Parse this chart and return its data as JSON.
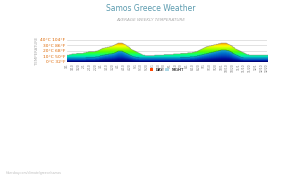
{
  "title": "Samos Greece Weather",
  "subtitle": "AVERAGE WEEKLY TEMPERATURE",
  "ylabel": "TEMPERATURE",
  "yticks_labels": [
    "0°C 32°F",
    "10°C 50°F",
    "20°C 68°F",
    "30°C 86°F",
    "40°C 104°F"
  ],
  "yticks_values": [
    0,
    10,
    20,
    30,
    40
  ],
  "ylim": [
    0,
    40
  ],
  "title_color": "#5b9baf",
  "subtitle_color": "#aaaaaa",
  "background_color": "#ffffff",
  "watermark": "hikersbay.com/climate/greece/samos",
  "legend_day_color": "#ff4500",
  "legend_night_color": "#add8e6",
  "day_colors": [
    [
      0.0,
      "#0000dd"
    ],
    [
      0.15,
      "#00aaff"
    ],
    [
      0.3,
      "#00ff88"
    ],
    [
      0.45,
      "#55ff00"
    ],
    [
      0.6,
      "#bbff00"
    ],
    [
      0.7,
      "#ffff00"
    ],
    [
      0.8,
      "#ffaa00"
    ],
    [
      0.9,
      "#ff4400"
    ],
    [
      1.0,
      "#ff0000"
    ]
  ],
  "night_colors": [
    [
      0.0,
      "#00005a"
    ],
    [
      0.25,
      "#000899"
    ],
    [
      0.5,
      "#0044bb"
    ],
    [
      0.75,
      "#0077cc"
    ],
    [
      1.0,
      "#22aacc"
    ]
  ],
  "day_temps": [
    12,
    12,
    13,
    13,
    14,
    14,
    14,
    14,
    15,
    15,
    15,
    15,
    15,
    15,
    16,
    16,
    17,
    17,
    18,
    18,
    18,
    18,
    18,
    18,
    19,
    19,
    20,
    21,
    22,
    23,
    24,
    24,
    25,
    25,
    26,
    26,
    27,
    27,
    28,
    29,
    30,
    31,
    32,
    33,
    33,
    33,
    33,
    32,
    31,
    30,
    28,
    27,
    26,
    24,
    22,
    21,
    20,
    19,
    18,
    17,
    16,
    15,
    14,
    13,
    12,
    12,
    11,
    11,
    11,
    11,
    11,
    11,
    11,
    11,
    12,
    12,
    12,
    12,
    12,
    12,
    12,
    12,
    13,
    13,
    13,
    13,
    13,
    13,
    13,
    13,
    14,
    14,
    14,
    14,
    14,
    14,
    15,
    15,
    15,
    15,
    15,
    15,
    16,
    16,
    16,
    16,
    17,
    17,
    18,
    18,
    19,
    20,
    21,
    22,
    23,
    24,
    25,
    26,
    27,
    27,
    28,
    28,
    29,
    29,
    30,
    30,
    31,
    31,
    32,
    32,
    33,
    33,
    33,
    33,
    33,
    32,
    31,
    30,
    29,
    28,
    26,
    25,
    23,
    22,
    21,
    20,
    19,
    18,
    17,
    16,
    15,
    14,
    13,
    13,
    12,
    12,
    12,
    12,
    12,
    12,
    12,
    12,
    12,
    12,
    12,
    12,
    12,
    12,
    12,
    12
  ],
  "night_temps": [
    7,
    7,
    7,
    7,
    7,
    7,
    7,
    7,
    7,
    7,
    7,
    7,
    7,
    7,
    7,
    7,
    8,
    8,
    8,
    8,
    8,
    8,
    8,
    8,
    9,
    9,
    9,
    10,
    11,
    11,
    12,
    12,
    13,
    13,
    13,
    14,
    14,
    14,
    15,
    15,
    16,
    17,
    18,
    19,
    19,
    19,
    19,
    18,
    17,
    16,
    15,
    14,
    13,
    12,
    11,
    10,
    9,
    9,
    8,
    8,
    8,
    7,
    7,
    7,
    7,
    7,
    7,
    7,
    7,
    7,
    7,
    7,
    7,
    7,
    7,
    7,
    7,
    7,
    7,
    7,
    7,
    7,
    7,
    7,
    7,
    7,
    7,
    7,
    7,
    7,
    7,
    7,
    7,
    7,
    7,
    7,
    8,
    8,
    8,
    8,
    8,
    8,
    8,
    8,
    9,
    9,
    9,
    9,
    10,
    10,
    11,
    11,
    12,
    12,
    13,
    13,
    14,
    14,
    15,
    15,
    16,
    16,
    17,
    17,
    18,
    18,
    19,
    19,
    20,
    20,
    21,
    21,
    21,
    21,
    21,
    20,
    20,
    19,
    18,
    17,
    15,
    14,
    13,
    12,
    11,
    10,
    9,
    8,
    8,
    7,
    7,
    7,
    7,
    7,
    7,
    7,
    7,
    7,
    7,
    7,
    7,
    7,
    7,
    7,
    7,
    7,
    7,
    7,
    7,
    7
  ],
  "week_labels": [
    "1/1",
    "1/10",
    "1/20",
    "2/1",
    "2/10",
    "2/20",
    "3/1",
    "3/10",
    "3/20",
    "4/1",
    "4/10",
    "4/20",
    "5/1",
    "5/10",
    "5/20",
    "6/1",
    "6/10",
    "6/20",
    "7/1",
    "7/10",
    "7/20",
    "8/1",
    "8/10",
    "8/20",
    "9/1",
    "9/10",
    "9/20",
    "10/1",
    "10/10",
    "10/20",
    "11/1",
    "11/10",
    "11/20",
    "12/1",
    "12/10",
    "12/20"
  ]
}
